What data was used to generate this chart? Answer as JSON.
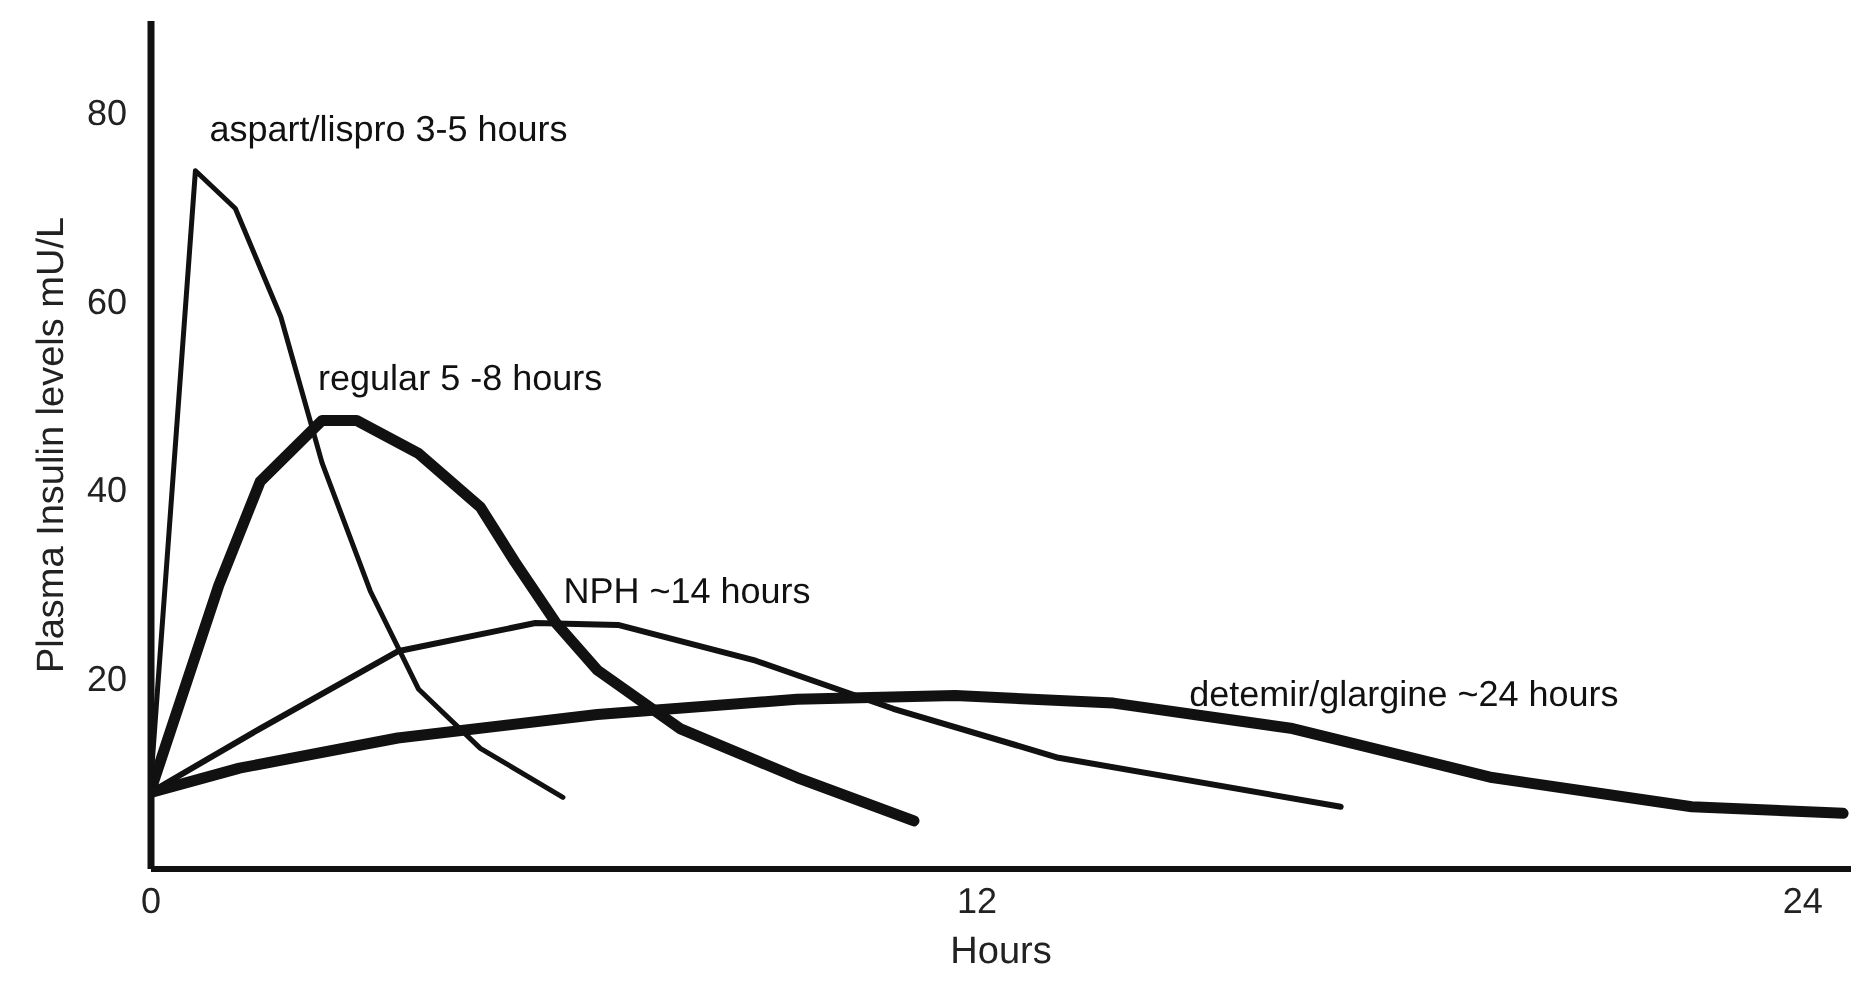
{
  "chart_data": {
    "type": "line",
    "xlabel": "Hours",
    "ylabel": "Plasma Insulin levels mU/L",
    "xlim": [
      0,
      24.7
    ],
    "ylim": [
      0,
      90
    ],
    "xticks": [
      0,
      12,
      24
    ],
    "yticks": [
      20,
      40,
      60,
      80
    ],
    "grid": false,
    "marker": "none",
    "line_style": "solid",
    "series": [
      {
        "name": "aspart/lispro 3-5 hours",
        "color": "#111111",
        "x": [
          0,
          0.66,
          1.24,
          1.9,
          2.5,
          3.2,
          3.9,
          4.8,
          6.0
        ],
        "values": [
          8,
          74,
          70,
          58.5,
          43,
          29.4,
          19,
          12.7,
          7.5
        ]
      },
      {
        "name": "regular 5 -8 hours",
        "color": "#111111",
        "x": [
          0,
          1.0,
          1.6,
          2.5,
          3.0,
          3.9,
          4.8,
          5.3,
          5.9,
          6.5,
          7.7,
          9.4,
          11.1
        ],
        "values": [
          8,
          30,
          41,
          47.5,
          47.5,
          44,
          38.3,
          32.5,
          26,
          21,
          14.8,
          9.6,
          5
        ]
      },
      {
        "name": "NPH ~14 hours",
        "color": "#111111",
        "x": [
          0,
          1.6,
          3.6,
          5.6,
          6.8,
          8.8,
          10.8,
          13.2,
          17.3
        ],
        "values": [
          8,
          14.8,
          23,
          26,
          25.8,
          22,
          16.9,
          11.7,
          6.5
        ]
      },
      {
        "name": "detemir/glargine ~24 hours",
        "color": "#111111",
        "x": [
          0,
          1.3,
          3.6,
          6.5,
          9.4,
          11.7,
          14,
          16.6,
          19.5,
          22.4,
          24.6
        ],
        "values": [
          8,
          10.6,
          13.8,
          16.3,
          17.9,
          18.3,
          17.5,
          14.8,
          9.6,
          6.5,
          5.8
        ]
      }
    ]
  }
}
